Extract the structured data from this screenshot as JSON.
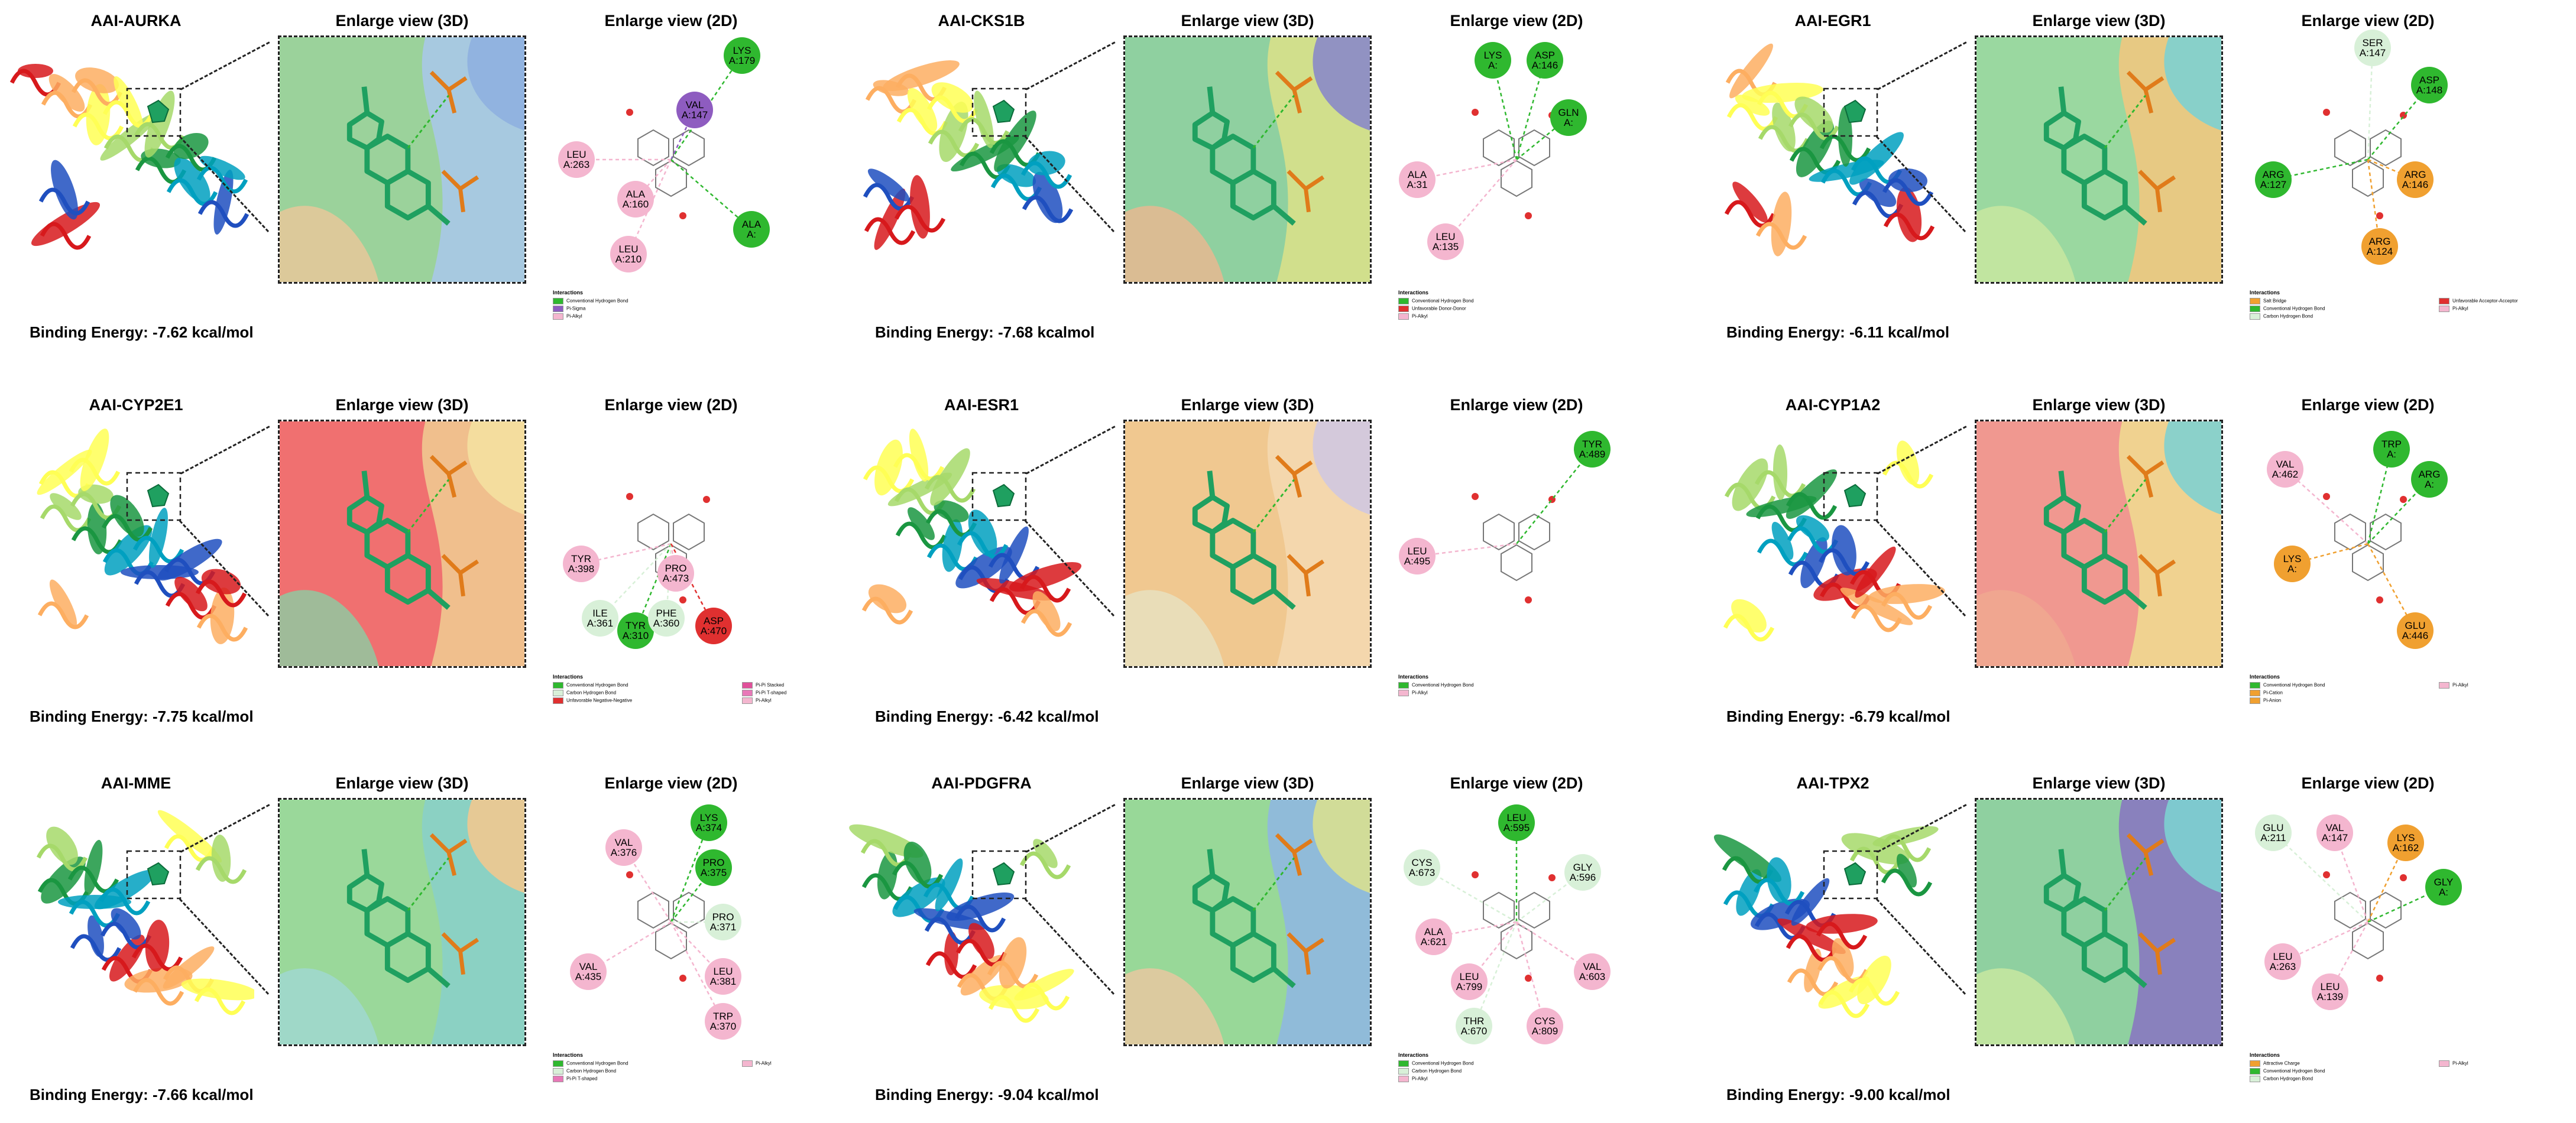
{
  "colors": {
    "hbond": "#2fb82f",
    "pi_alkyl": "#f4b6cf",
    "pi_sigma": "#8e5cc0",
    "pi_cation": "#f0a030",
    "unfavorable": "#e03030",
    "carbon_hbond": "#d8f0d8",
    "ligand_green": "#1fa060",
    "residue_orange": "#e07b1a"
  },
  "panels": [
    {
      "protein_title": "AAI-AURKA",
      "view3d_title": "Enlarge view (3D)",
      "view2d_title": "Enlarge view (2D)",
      "binding_energy": "Binding Energy: -7.62 kcal/mol",
      "residues": [
        {
          "name": "LYS",
          "num": "A:179",
          "type": "hbond"
        },
        {
          "name": "VAL",
          "num": "A:147",
          "type": "pi_sigma"
        },
        {
          "name": "LEU",
          "num": "A:263",
          "type": "pi_alkyl"
        },
        {
          "name": "ALA",
          "num": "A:160",
          "type": "pi_alkyl"
        },
        {
          "name": "LEU",
          "num": "A:210",
          "type": "pi_alkyl"
        },
        {
          "name": "ALA",
          "num": "A:",
          "type": "hbond"
        }
      ],
      "legend_title": "Interactions",
      "legend": [
        {
          "label": "Conventional Hydrogen Bond",
          "color": "#2fb82f"
        },
        {
          "label": "Pi-Sigma",
          "color": "#8e5cc0"
        },
        {
          "label": "Pi-Alkyl",
          "color": "#f4b6cf"
        }
      ]
    },
    {
      "protein_title": "AAI-CKS1B",
      "view3d_title": "Enlarge view (3D)",
      "view2d_title": "Enlarge view (2D)",
      "binding_energy": "Binding Energy: -7.68 kcalmol",
      "residues": [
        {
          "name": "LYS",
          "num": "A:",
          "type": "hbond"
        },
        {
          "name": "ASP",
          "num": "A:146",
          "type": "hbond"
        },
        {
          "name": "GLN",
          "num": "A:",
          "type": "hbond"
        },
        {
          "name": "ALA",
          "num": "A:31",
          "type": "pi_alkyl"
        },
        {
          "name": "LEU",
          "num": "A:135",
          "type": "pi_alkyl"
        }
      ],
      "legend_title": "Interactions",
      "legend": [
        {
          "label": "Conventional Hydrogen Bond",
          "color": "#2fb82f"
        },
        {
          "label": "Unfavorable Donor-Donor",
          "color": "#e03030"
        },
        {
          "label": "Pi-Alkyl",
          "color": "#f4b6cf"
        }
      ]
    },
    {
      "protein_title": "AAI-EGR1",
      "view3d_title": "Enlarge view (3D)",
      "view2d_title": "Enlarge view (2D)",
      "binding_energy": "Binding Energy: -6.11 kcal/mol",
      "residues": [
        {
          "name": "SER",
          "num": "A:147",
          "type": "carbon_hbond"
        },
        {
          "name": "ASP",
          "num": "A:148",
          "type": "hbond"
        },
        {
          "name": "ARG",
          "num": "A:127",
          "type": "hbond"
        },
        {
          "name": "ARG",
          "num": "A:146",
          "type": "pi_cation"
        },
        {
          "name": "ARG",
          "num": "A:124",
          "type": "pi_cation"
        }
      ],
      "legend_title": "Interactions",
      "legend": [
        {
          "label": "Salt Bridge",
          "color": "#f0a030"
        },
        {
          "label": "Conventional Hydrogen Bond",
          "color": "#2fb82f"
        },
        {
          "label": "Carbon Hydrogen Bond",
          "color": "#d8f0d8"
        },
        {
          "label": "Unfavorable Acceptor-Acceptor",
          "color": "#e03030"
        },
        {
          "label": "Pi-Alkyl",
          "color": "#f4b6cf"
        }
      ]
    },
    {
      "protein_title": "AAI-CYP2E1",
      "view3d_title": "Enlarge view (3D)",
      "view2d_title": "Enlarge view (2D)",
      "binding_energy": "Binding Energy: -7.75 kcal/mol",
      "residues": [
        {
          "name": "TYR",
          "num": "A:398",
          "type": "pi_alkyl"
        },
        {
          "name": "PRO",
          "num": "A:473",
          "type": "pi_alkyl"
        },
        {
          "name": "ILE",
          "num": "A:361",
          "type": "carbon_hbond"
        },
        {
          "name": "TYR",
          "num": "A:310",
          "type": "hbond"
        },
        {
          "name": "PHE",
          "num": "A:360",
          "type": "carbon_hbond"
        },
        {
          "name": "ASP",
          "num": "A:470",
          "type": "unfavorable"
        }
      ],
      "legend_title": "Interactions",
      "legend": [
        {
          "label": "Conventional Hydrogen Bond",
          "color": "#2fb82f"
        },
        {
          "label": "Carbon Hydrogen Bond",
          "color": "#d8f0d8"
        },
        {
          "label": "Unfavorable Negative-Negative",
          "color": "#e03030"
        },
        {
          "label": "Pi-Pi Stacked",
          "color": "#e0509a"
        },
        {
          "label": "Pi-Pi T-shaped",
          "color": "#e878b8"
        },
        {
          "label": "Pi-Alkyl",
          "color": "#f4b6cf"
        }
      ]
    },
    {
      "protein_title": "AAI-ESR1",
      "view3d_title": "Enlarge view (3D)",
      "view2d_title": "Enlarge view (2D)",
      "binding_energy": "Binding Energy: -6.42 kcal/mol",
      "residues": [
        {
          "name": "TYR",
          "num": "A:489",
          "type": "hbond"
        },
        {
          "name": "LEU",
          "num": "A:495",
          "type": "pi_alkyl"
        }
      ],
      "legend_title": "Interactions",
      "legend": [
        {
          "label": "Conventional Hydrogen Bond",
          "color": "#2fb82f"
        },
        {
          "label": "Pi-Alkyl",
          "color": "#f4b6cf"
        }
      ]
    },
    {
      "protein_title": "AAI-CYP1A2",
      "view3d_title": "Enlarge view (3D)",
      "view2d_title": "Enlarge view (2D)",
      "binding_energy": "Binding Energy: -6.79 kcal/mol",
      "residues": [
        {
          "name": "VAL",
          "num": "A:462",
          "type": "pi_alkyl"
        },
        {
          "name": "TRP",
          "num": "A:",
          "type": "hbond"
        },
        {
          "name": "ARG",
          "num": "A:",
          "type": "hbond"
        },
        {
          "name": "LYS",
          "num": "A:",
          "type": "pi_cation"
        },
        {
          "name": "GLU",
          "num": "A:446",
          "type": "pi_cation"
        }
      ],
      "legend_title": "Interactions",
      "legend": [
        {
          "label": "Conventional Hydrogen Bond",
          "color": "#2fb82f"
        },
        {
          "label": "Pi-Cation",
          "color": "#f0a030"
        },
        {
          "label": "Pi-Anion",
          "color": "#f0a030"
        },
        {
          "label": "Pi-Alkyl",
          "color": "#f4b6cf"
        }
      ]
    },
    {
      "protein_title": "AAI-MME",
      "view3d_title": "Enlarge view (3D)",
      "view2d_title": "Enlarge view (2D)",
      "binding_energy": "Binding Energy: -7.66 kcal/mol",
      "residues": [
        {
          "name": "VAL",
          "num": "A:376",
          "type": "pi_alkyl"
        },
        {
          "name": "LYS",
          "num": "A:374",
          "type": "hbond"
        },
        {
          "name": "PRO",
          "num": "A:375",
          "type": "hbond"
        },
        {
          "name": "PRO",
          "num": "A:371",
          "type": "carbon_hbond"
        },
        {
          "name": "LEU",
          "num": "A:381",
          "type": "pi_alkyl"
        },
        {
          "name": "VAL",
          "num": "A:435",
          "type": "pi_alkyl"
        },
        {
          "name": "TRP",
          "num": "A:370",
          "type": "pi_alkyl"
        }
      ],
      "legend_title": "Interactions",
      "legend": [
        {
          "label": "Conventional Hydrogen Bond",
          "color": "#2fb82f"
        },
        {
          "label": "Carbon Hydrogen Bond",
          "color": "#d8f0d8"
        },
        {
          "label": "Pi-Pi T-shaped",
          "color": "#e878b8"
        },
        {
          "label": "Pi-Alkyl",
          "color": "#f4b6cf"
        }
      ]
    },
    {
      "protein_title": "AAI-PDGFRA",
      "view3d_title": "Enlarge view (3D)",
      "view2d_title": "Enlarge view (2D)",
      "binding_energy": "Binding Energy: -9.04 kcal/mol",
      "residues": [
        {
          "name": "LEU",
          "num": "A:595",
          "type": "hbond"
        },
        {
          "name": "CYS",
          "num": "A:673",
          "type": "carbon_hbond"
        },
        {
          "name": "GLY",
          "num": "A:596",
          "type": "carbon_hbond"
        },
        {
          "name": "ALA",
          "num": "A:621",
          "type": "pi_alkyl"
        },
        {
          "name": "LEU",
          "num": "A:799",
          "type": "pi_alkyl"
        },
        {
          "name": "VAL",
          "num": "A:603",
          "type": "pi_alkyl"
        },
        {
          "name": "THR",
          "num": "A:670",
          "type": "carbon_hbond"
        },
        {
          "name": "CYS",
          "num": "A:809",
          "type": "pi_alkyl"
        }
      ],
      "legend_title": "Interactions",
      "legend": [
        {
          "label": "Conventional Hydrogen Bond",
          "color": "#2fb82f"
        },
        {
          "label": "Carbon Hydrogen Bond",
          "color": "#d8f0d8"
        },
        {
          "label": "Pi-Alkyl",
          "color": "#f4b6cf"
        }
      ]
    },
    {
      "protein_title": "AAI-TPX2",
      "view3d_title": "Enlarge view (3D)",
      "view2d_title": "Enlarge view (2D)",
      "binding_energy": "Binding Energy: -9.00 kcal/mol",
      "residues": [
        {
          "name": "GLU",
          "num": "A:211",
          "type": "carbon_hbond"
        },
        {
          "name": "VAL",
          "num": "A:147",
          "type": "pi_alkyl"
        },
        {
          "name": "LYS",
          "num": "A:162",
          "type": "pi_cation"
        },
        {
          "name": "GLY",
          "num": "A:",
          "type": "hbond"
        },
        {
          "name": "LEU",
          "num": "A:263",
          "type": "pi_alkyl"
        },
        {
          "name": "LEU",
          "num": "A:139",
          "type": "pi_alkyl"
        }
      ],
      "legend_title": "Interactions",
      "legend": [
        {
          "label": "Attractive Charge",
          "color": "#f0a030"
        },
        {
          "label": "Conventional Hydrogen Bond",
          "color": "#2fb82f"
        },
        {
          "label": "Carbon Hydrogen Bond",
          "color": "#d8f0d8"
        },
        {
          "label": "Pi-Alkyl",
          "color": "#f4b6cf"
        }
      ]
    }
  ]
}
